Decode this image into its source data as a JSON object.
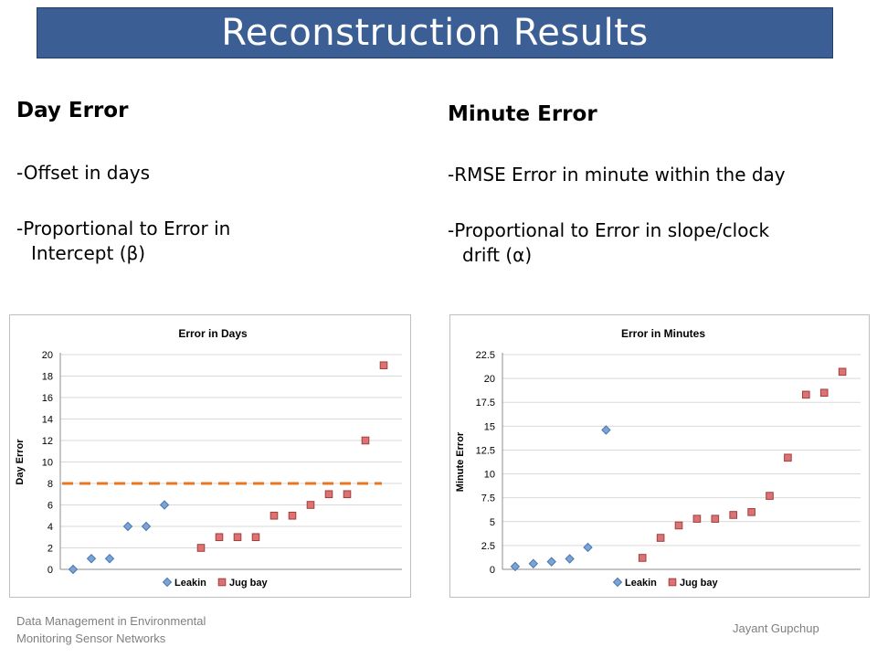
{
  "slide": {
    "title": "Reconstruction Results",
    "left": {
      "heading": "Day Error",
      "bullet1": "-Offset in days",
      "bullet2_line1": "-Proportional to Error in",
      "bullet2_line2": "Intercept  (β)"
    },
    "right": {
      "heading": "Minute Error",
      "bullet1": "-RMSE Error in minute within the day",
      "bullet2_line1": "-Proportional to Error in slope/clock",
      "bullet2_line2": "drift  (α)"
    },
    "footer_left": "Data Management in Environmental Monitoring Sensor Networks",
    "footer_right": "Jayant Gupchup"
  },
  "colors": {
    "title_bg": "#3b5f94",
    "leakin": "#7aa4d6",
    "jugbay": "#d97474",
    "threshold": "#e87722"
  },
  "chart_data": [
    {
      "type": "scatter",
      "title": "Error in Days",
      "xlabel": "",
      "ylabel": "Day Error",
      "ylim": [
        0,
        20
      ],
      "yticks": [
        0,
        2,
        4,
        6,
        8,
        10,
        12,
        14,
        16,
        18,
        20
      ],
      "grid": true,
      "legend": "bottom",
      "threshold": 8,
      "series": [
        {
          "name": "Leakin",
          "marker": "diamond",
          "x": [
            1,
            2,
            3,
            4,
            5,
            6
          ],
          "y": [
            0,
            1,
            1,
            4,
            4,
            6
          ]
        },
        {
          "name": "Jug bay",
          "marker": "square",
          "x": [
            8,
            9,
            10,
            11,
            12,
            13,
            14,
            15,
            16,
            17,
            18
          ],
          "y": [
            2,
            3,
            3,
            3,
            5,
            5,
            6,
            7,
            7,
            12,
            19
          ]
        }
      ]
    },
    {
      "type": "scatter",
      "title": "Error in Minutes",
      "xlabel": "",
      "ylabel": "Minute Error",
      "ylim": [
        0,
        22.5
      ],
      "yticks": [
        "0",
        "2.5",
        "5",
        "7.5",
        "10",
        "12.5",
        "15",
        "17.5",
        "20",
        "22.5"
      ],
      "grid": true,
      "legend": "bottom",
      "series": [
        {
          "name": "Leakin",
          "marker": "diamond",
          "x": [
            1,
            2,
            3,
            4,
            5,
            6
          ],
          "y": [
            0.3,
            0.6,
            0.8,
            1.1,
            2.3,
            14.6
          ]
        },
        {
          "name": "Jug bay",
          "marker": "square",
          "x": [
            8,
            9,
            10,
            11,
            12,
            13,
            14,
            15,
            16,
            17,
            18,
            19
          ],
          "y": [
            1.2,
            3.3,
            4.6,
            5.3,
            5.3,
            5.7,
            6.0,
            7.7,
            11.7,
            18.3,
            18.5,
            20.7
          ]
        }
      ]
    }
  ]
}
